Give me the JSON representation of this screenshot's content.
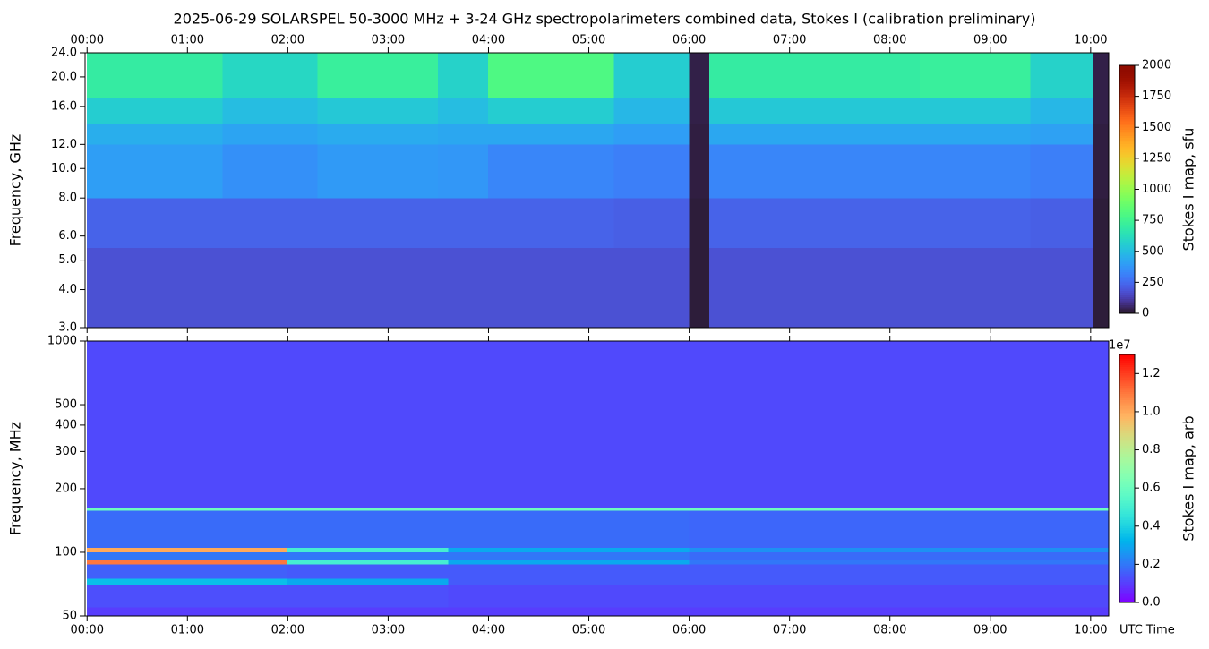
{
  "title": "2025-06-29  SOLARSPEL  50-3000 MHz  +  3-24 GHz  spectropolarimeters combined data,  Stokes I  (calibration preliminary)",
  "chart_data": [
    {
      "type": "heatmap",
      "ylabel": "Frequency, GHz",
      "colorbar_label": "Stokes I map, sfu",
      "xaxis_position": "top",
      "yscale": "log",
      "colormap": "turbo",
      "xlim": [
        -0.02,
        10.18
      ],
      "xticks": [
        {
          "value": 0,
          "label": "00:00"
        },
        {
          "value": 1,
          "label": "01:00"
        },
        {
          "value": 2,
          "label": "02:00"
        },
        {
          "value": 3,
          "label": "03:00"
        },
        {
          "value": 4,
          "label": "04:00"
        },
        {
          "value": 5,
          "label": "05:00"
        },
        {
          "value": 6,
          "label": "06:00"
        },
        {
          "value": 7,
          "label": "07:00"
        },
        {
          "value": 8,
          "label": "08:00"
        },
        {
          "value": 9,
          "label": "09:00"
        },
        {
          "value": 10,
          "label": "10:00"
        }
      ],
      "ylim": [
        3,
        24
      ],
      "yticks": [
        {
          "value": 3,
          "label": "3.0"
        },
        {
          "value": 4,
          "label": "4.0"
        },
        {
          "value": 5,
          "label": "5.0"
        },
        {
          "value": 6,
          "label": "6.0"
        },
        {
          "value": 8,
          "label": "8.0"
        },
        {
          "value": 10,
          "label": "10.0"
        },
        {
          "value": 12,
          "label": "12.0"
        },
        {
          "value": 16,
          "label": "16.0"
        },
        {
          "value": 20,
          "label": "20.0"
        },
        {
          "value": 24,
          "label": "24.0"
        }
      ],
      "clim": [
        0,
        2000
      ],
      "cticks": [
        0,
        250,
        500,
        750,
        1000,
        1250,
        1500,
        1750,
        2000
      ],
      "x_edges": [
        0,
        1.35,
        2.3,
        3.5,
        4.0,
        5.25,
        6.0,
        6.2,
        8.3,
        9.4,
        10.02,
        10.18
      ],
      "y_edges": [
        3,
        5.5,
        8,
        12,
        14,
        17,
        24
      ],
      "values": [
        [
          180,
          180,
          180,
          180,
          180,
          180,
          20,
          180,
          180,
          180,
          20
        ],
        [
          230,
          230,
          230,
          230,
          230,
          220,
          20,
          230,
          230,
          220,
          20
        ],
        [
          400,
          360,
          390,
          380,
          330,
          310,
          25,
          330,
          330,
          310,
          25
        ],
        [
          450,
          420,
          440,
          430,
          430,
          400,
          25,
          430,
          430,
          410,
          25
        ],
        [
          560,
          500,
          540,
          500,
          560,
          480,
          30,
          540,
          540,
          480,
          30
        ],
        [
          700,
          600,
          720,
          580,
          800,
          560,
          30,
          700,
          720,
          580,
          30
        ]
      ]
    },
    {
      "type": "heatmap",
      "ylabel": "Frequency, MHz",
      "colorbar_label": "Stokes I map, arb",
      "xlabel": "UTC Time",
      "xaxis_position": "bottom",
      "yscale": "log",
      "colormap": "rainbow",
      "xlim": [
        -0.02,
        10.18
      ],
      "xticks": [
        {
          "value": 0,
          "label": "00:00"
        },
        {
          "value": 1,
          "label": "01:00"
        },
        {
          "value": 2,
          "label": "02:00"
        },
        {
          "value": 3,
          "label": "03:00"
        },
        {
          "value": 4,
          "label": "04:00"
        },
        {
          "value": 5,
          "label": "05:00"
        },
        {
          "value": 6,
          "label": "06:00"
        },
        {
          "value": 7,
          "label": "07:00"
        },
        {
          "value": 8,
          "label": "08:00"
        },
        {
          "value": 9,
          "label": "09:00"
        },
        {
          "value": 10,
          "label": "10:00"
        }
      ],
      "ylim": [
        50,
        1000
      ],
      "yticks": [
        50,
        100,
        200,
        300,
        400,
        500,
        1000
      ],
      "clim": [
        0,
        13000000
      ],
      "colorbar_offset": "1e7",
      "cticks": [
        {
          "value": 0,
          "label": "0.0"
        },
        {
          "value": 2000000,
          "label": "0.2"
        },
        {
          "value": 4000000,
          "label": "0.4"
        },
        {
          "value": 6000000,
          "label": "0.6"
        },
        {
          "value": 8000000,
          "label": "0.8"
        },
        {
          "value": 10000000,
          "label": "1.0"
        },
        {
          "value": 12000000,
          "label": "1.2"
        }
      ],
      "x_edges": [
        0,
        2.0,
        3.6,
        6.0,
        10.18
      ],
      "y_edges": [
        50,
        55,
        70,
        75,
        88,
        92,
        100,
        105,
        158,
        162,
        1000
      ],
      "values": [
        [
          1000000,
          1000000,
          1000000,
          1000000
        ],
        [
          1300000,
          1300000,
          1200000,
          1200000
        ],
        [
          3500000,
          3000000,
          1500000,
          1500000
        ],
        [
          1600000,
          1500000,
          1500000,
          1500000
        ],
        [
          11000000,
          5000000,
          3000000,
          2000000
        ],
        [
          2000000,
          2000000,
          2000000,
          1800000
        ],
        [
          10000000,
          5000000,
          3000000,
          2500000
        ],
        [
          1800000,
          1800000,
          1800000,
          1700000
        ],
        [
          6000000,
          6000000,
          6000000,
          6000000
        ],
        [
          1200000,
          1200000,
          1200000,
          1200000
        ]
      ]
    }
  ]
}
